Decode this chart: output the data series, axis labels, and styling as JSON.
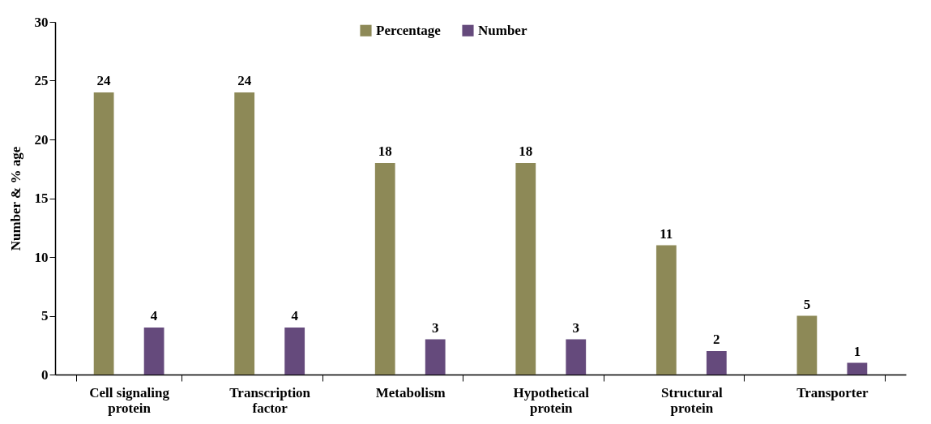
{
  "chart_data": {
    "type": "bar",
    "ylabel": "Number & % age",
    "categories": [
      "Cell signaling protein",
      "Transcription factor",
      "Metabolism",
      "Hypothetical protein",
      "Structural protein",
      "Transporter"
    ],
    "series": [
      {
        "name": "Percentage",
        "color": "#8d8957",
        "values": [
          24,
          24,
          18,
          18,
          11,
          5
        ]
      },
      {
        "name": "Number",
        "color": "#654a7c",
        "values": [
          4,
          4,
          3,
          3,
          2,
          1
        ]
      }
    ],
    "ylim": [
      0,
      30
    ],
    "yticks": [
      0,
      5,
      10,
      15,
      20,
      25,
      30
    ],
    "grid": false,
    "legend": "top",
    "data_labels": true
  }
}
